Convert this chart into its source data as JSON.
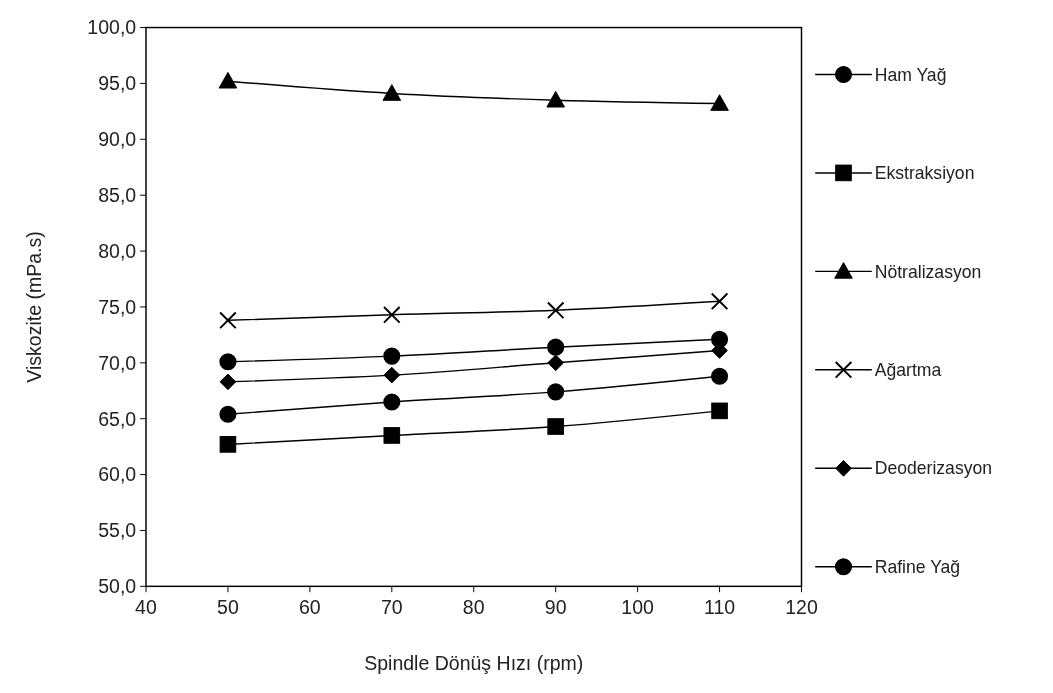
{
  "chart_data": {
    "type": "line",
    "xlabel": "Spindle Dönüş Hızı (rpm)",
    "ylabel": "Viskozite (mPa.s)",
    "x": [
      50,
      70,
      90,
      110
    ],
    "xlim": [
      40,
      120
    ],
    "xticks": [
      40,
      50,
      60,
      70,
      80,
      90,
      100,
      110,
      120
    ],
    "ylim": [
      50,
      100
    ],
    "yticks": [
      {
        "value": 50,
        "label": "50,0"
      },
      {
        "value": 55,
        "label": "55,0"
      },
      {
        "value": 60,
        "label": "60,0"
      },
      {
        "value": 65,
        "label": "65,0"
      },
      {
        "value": 70,
        "label": "70,0"
      },
      {
        "value": 75,
        "label": "75,0"
      },
      {
        "value": 80,
        "label": "80,0"
      },
      {
        "value": 85,
        "label": "85,0"
      },
      {
        "value": 90,
        "label": "90,0"
      },
      {
        "value": 95,
        "label": "95,0"
      },
      {
        "value": 100,
        "label": "100,0"
      }
    ],
    "grid": false,
    "legend": "right",
    "line_style": "solid",
    "series": [
      {
        "name": "Ham Yağ",
        "color": "#000000",
        "marker": "circle",
        "values": [
          65.4,
          66.5,
          67.4,
          68.8
        ]
      },
      {
        "name": "Ekstraksiyon",
        "color": "#000000",
        "marker": "square",
        "values": [
          62.7,
          63.5,
          64.3,
          65.7
        ]
      },
      {
        "name": "Nötralizasyon",
        "color": "#000000",
        "marker": "triangle",
        "values": [
          95.2,
          94.1,
          93.5,
          93.2
        ]
      },
      {
        "name": "Ağartma",
        "color": "#000000",
        "marker": "cross",
        "values": [
          73.8,
          74.3,
          74.7,
          75.5
        ]
      },
      {
        "name": "Deoderizasyon",
        "color": "#000000",
        "marker": "diamond",
        "values": [
          68.3,
          68.9,
          70.0,
          71.1
        ]
      },
      {
        "name": "Rafine Yağ",
        "color": "#000000",
        "marker": "circle",
        "values": [
          70.1,
          70.6,
          71.4,
          72.1
        ]
      }
    ]
  }
}
